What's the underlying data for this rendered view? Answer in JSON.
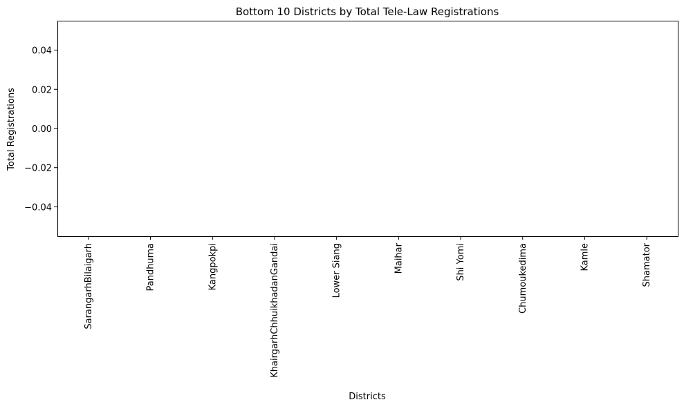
{
  "chart_data": {
    "type": "bar",
    "title": "Bottom 10 Districts by Total Tele-Law Registrations",
    "xlabel": "Districts",
    "ylabel": "Total Registrations",
    "categories": [
      "SarangarhBilaigarh",
      "Pandhurna",
      "Kangpokpi",
      "KhairgarhChhuikhadanGandai",
      "Lower Siang",
      "Maihar",
      "Shi Yomi",
      "Chumoukedima",
      "Kamle",
      "Shamator"
    ],
    "values": [
      0,
      0,
      0,
      0,
      0,
      0,
      0,
      0,
      0,
      0
    ],
    "ylim": [
      -0.055,
      0.055
    ],
    "yticks": [
      -0.04,
      -0.02,
      0.0,
      0.02,
      0.04
    ],
    "ytick_labels": [
      "−0.04",
      "−0.02",
      "0.00",
      "0.02",
      "0.04"
    ],
    "grid": false,
    "legend": "none",
    "bar_color": "#1f77b4"
  }
}
